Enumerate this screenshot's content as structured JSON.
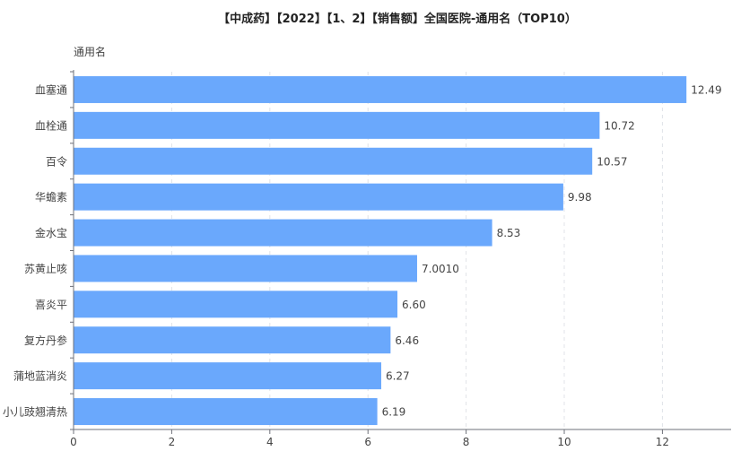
{
  "chart_data": {
    "type": "bar",
    "orientation": "horizontal",
    "title": "【中成药】【2022】【1、2】【销售额】全国医院-通用名（TOP10）",
    "ylabel": "通用名",
    "xlabel": "",
    "categories": [
      "血塞通",
      "血栓通",
      "百令",
      "华蟾素",
      "金水宝",
      "苏黄止咳",
      "喜炎平",
      "复方丹参",
      "蒲地蓝消炎",
      "小儿豉翘清热"
    ],
    "values": [
      12.49,
      10.72,
      10.57,
      9.98,
      8.53,
      7.001,
      6.6,
      6.46,
      6.27,
      6.19
    ],
    "value_labels": [
      "12.49",
      "10.72",
      "10.57",
      "9.98",
      "8.53",
      "7.0010",
      "6.60",
      "6.46",
      "6.27",
      "6.19"
    ],
    "xlim": [
      0,
      13.4
    ],
    "xticks": [
      0,
      2,
      4,
      6,
      8,
      10,
      12
    ],
    "grid": true,
    "legend": "none",
    "colors": {
      "bar": "#6aa8fc",
      "axis": "#6e7079",
      "grid": "#e0e3e8",
      "label": "#444444"
    }
  }
}
